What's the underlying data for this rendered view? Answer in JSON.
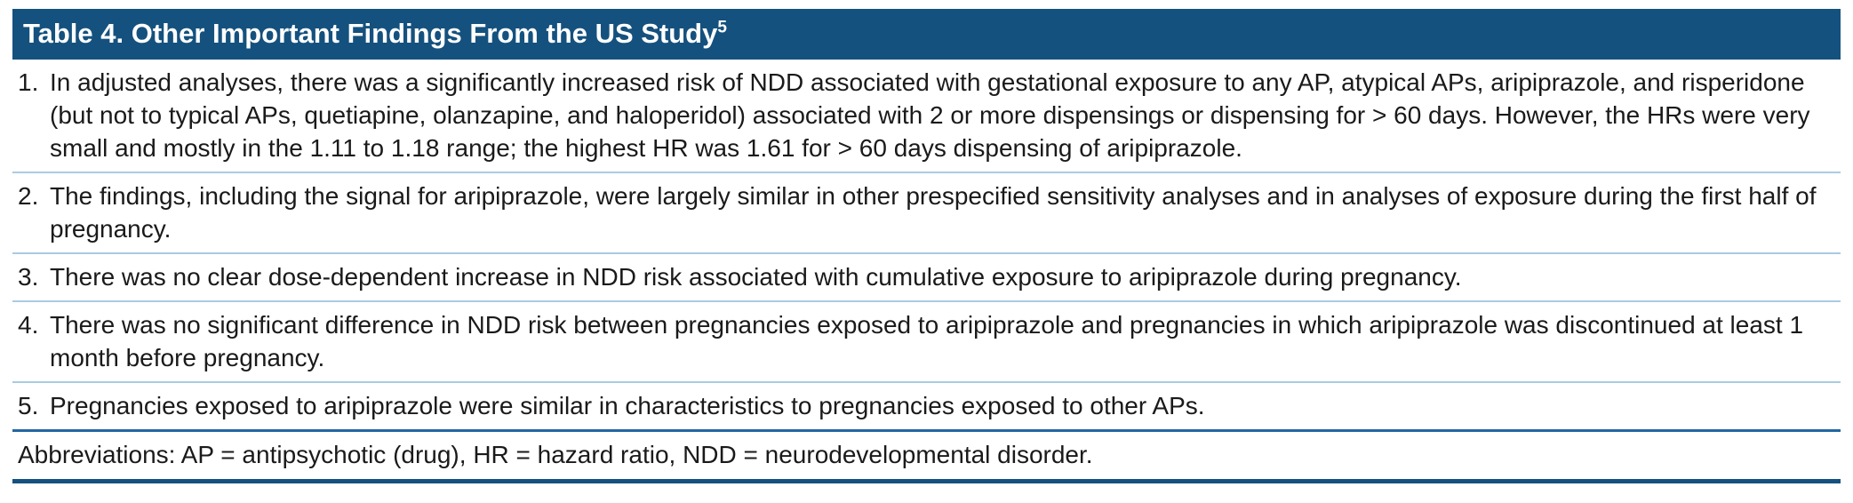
{
  "table": {
    "title": "Table 4. Other Important Findings From the US Study",
    "title_superscript": "5",
    "items": [
      {
        "number": "1.",
        "text": "In adjusted analyses, there was a significantly increased risk of NDD associated with gestational exposure to any AP, atypical APs, aripiprazole, and risperidone (but not to typical APs, quetiapine, olanzapine, and haloperidol) associated with 2 or more dispensings or dispensing for > 60 days. However, the HRs were very small and mostly in the 1.11 to 1.18 range; the highest HR was 1.61 for > 60 days dispensing of aripiprazole."
      },
      {
        "number": "2.",
        "text": "The findings, including the signal for aripiprazole, were largely similar in other prespecified sensitivity analyses and in analyses of exposure during the first half of pregnancy."
      },
      {
        "number": "3.",
        "text": "There was no clear dose-dependent increase in NDD risk associated with cumulative exposure to aripiprazole during pregnancy."
      },
      {
        "number": "4.",
        "text": "There was no significant difference in NDD risk between pregnancies exposed to aripiprazole and pregnancies in which aripiprazole was discontinued at least 1 month before pregnancy."
      },
      {
        "number": "5.",
        "text": "Pregnancies exposed to aripiprazole were similar in characteristics to pregnancies exposed to other APs."
      }
    ],
    "abbreviations": "Abbreviations: AP = antipsychotic (drug), HR = hazard ratio, NDD = neurodevelopmental disorder."
  },
  "colors": {
    "header_bg": "#15517E",
    "header_text": "#FFFFFF",
    "row_separator": "#A9CBE4",
    "section_rule": "#2366A0",
    "bottom_rule": "#15517E",
    "body_text": "#1A1A1A"
  }
}
